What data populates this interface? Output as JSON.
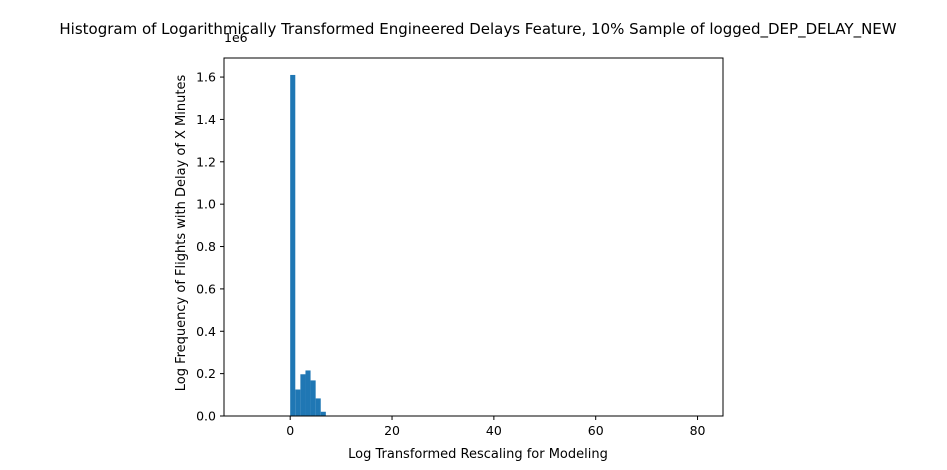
{
  "chart_data": {
    "type": "bar",
    "title": "Histogram of Logarithmically Transformed Engineered Delays Feature, 10% Sample of logged_DEP_DELAY_NEW",
    "xlabel": "Log Transformed Rescaling for Modeling",
    "ylabel": "Log Frequency of Flights with Delay of X Minutes",
    "y_offset_text": "1e6",
    "xlim": [
      -13,
      85
    ],
    "ylim": [
      0,
      1690000
    ],
    "x_ticks": [
      0,
      20,
      40,
      60,
      80
    ],
    "y_ticks": [
      0.0,
      0.2,
      0.4,
      0.6,
      0.8,
      1.0,
      1.2,
      1.4,
      1.6
    ],
    "y_tick_scale": 1000000,
    "bin_edges": [
      0,
      1,
      2,
      3,
      4,
      5,
      6,
      7
    ],
    "values": [
      1610000,
      125000,
      197000,
      215000,
      168000,
      83000,
      20000
    ],
    "color": "#1f77b4",
    "grid": false,
    "legend": "none"
  }
}
